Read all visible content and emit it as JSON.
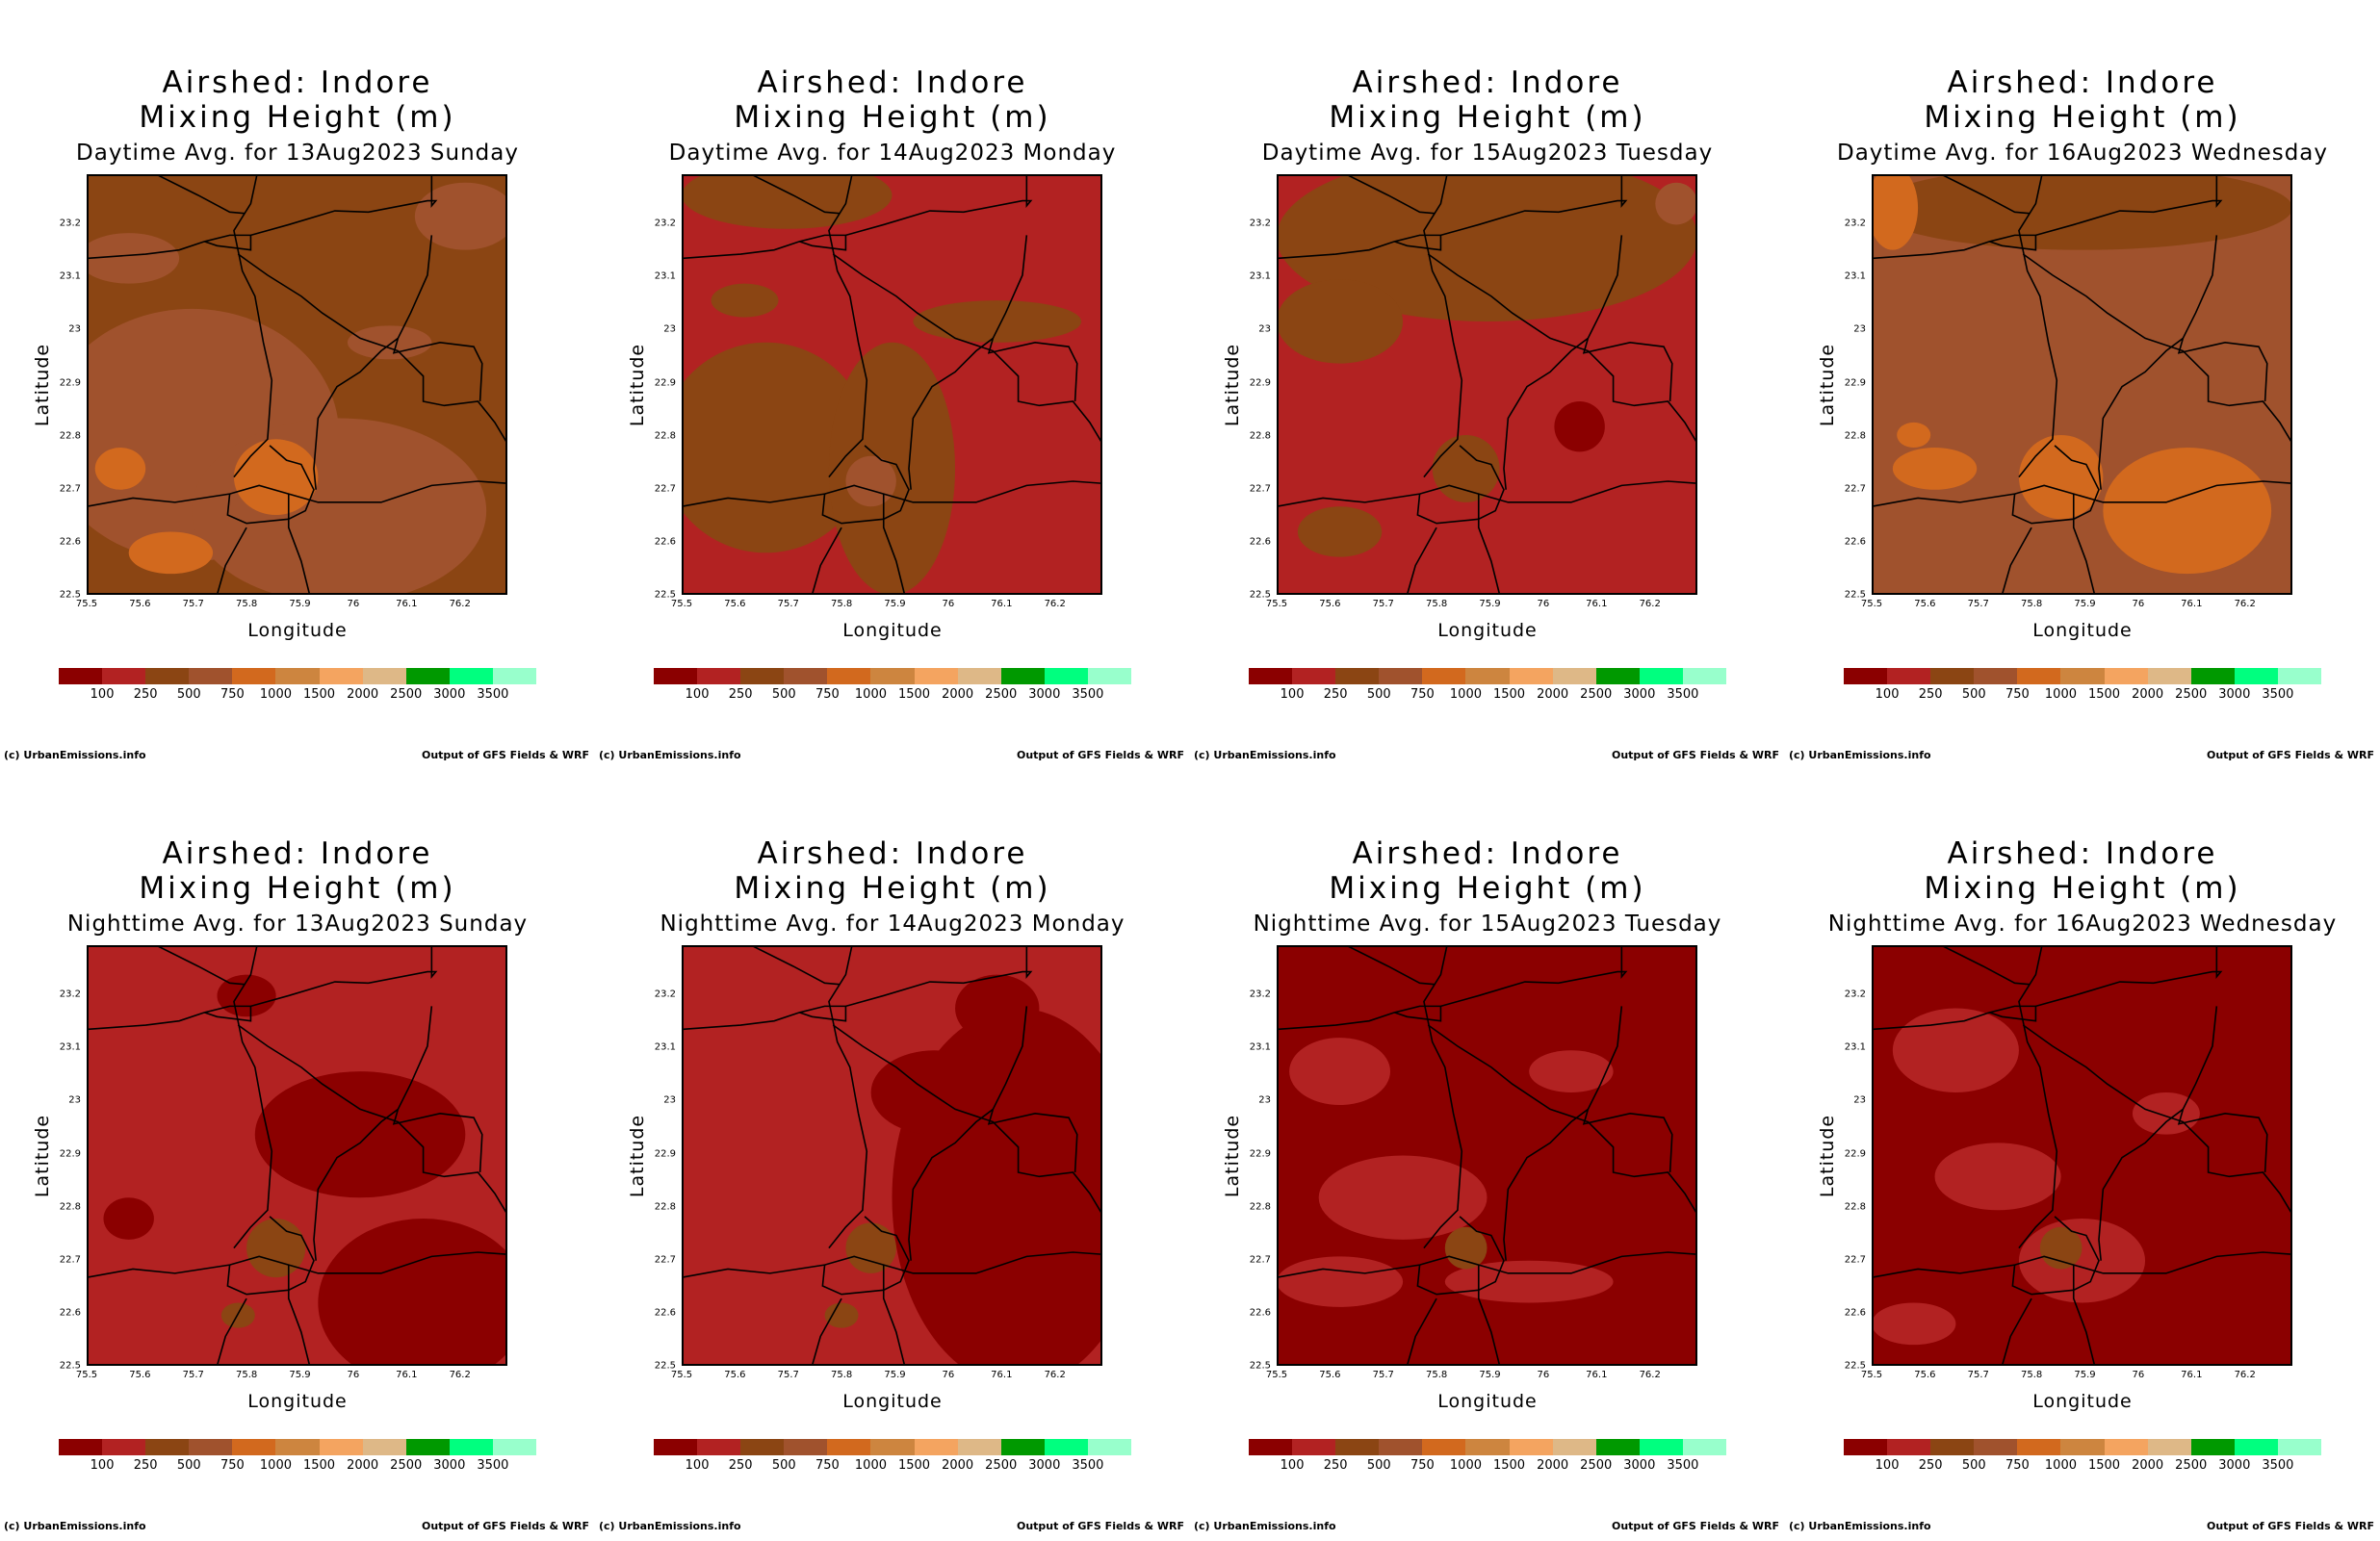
{
  "colorbar": {
    "colors": [
      "#8B0000",
      "#B22222",
      "#8B4513",
      "#A0522D",
      "#D2691E",
      "#CD853F",
      "#F4A460",
      "#DEB887",
      "#009900",
      "#00FF7F",
      "#98FFCC"
    ],
    "labels": [
      "100",
      "250",
      "500",
      "750",
      "1000",
      "1500",
      "2000",
      "2500",
      "3000",
      "3500"
    ]
  },
  "axes": {
    "xlabel": "Longitude",
    "ylabel": "Latitude",
    "xticks": [
      "75.5",
      "75.6",
      "75.7",
      "75.8",
      "75.9",
      "76",
      "76.1",
      "76.2"
    ],
    "yticks": [
      "22.5",
      "22.6",
      "22.7",
      "22.8",
      "22.9",
      "23",
      "23.1",
      "23.2"
    ]
  },
  "footer": {
    "left": "(c) UrbanEmissions.info",
    "right": "Output of GFS Fields & WRF"
  },
  "panels": [
    {
      "title": "Airshed: Indore",
      "subtitle": "Mixing Height (m)",
      "period": "Daytime Avg. for 13Aug2023 Sunday",
      "dominant_class": "250-500"
    },
    {
      "title": "Airshed: Indore",
      "subtitle": "Mixing Height (m)",
      "period": "Daytime Avg. for 14Aug2023 Monday",
      "dominant_class": "100-250"
    },
    {
      "title": "Airshed: Indore",
      "subtitle": "Mixing Height (m)",
      "period": "Daytime Avg. for 15Aug2023 Tuesday",
      "dominant_class": "100-250"
    },
    {
      "title": "Airshed: Indore",
      "subtitle": "Mixing Height (m)",
      "period": "Daytime Avg. for 16Aug2023 Wednesday",
      "dominant_class": "500-750"
    },
    {
      "title": "Airshed: Indore",
      "subtitle": "Mixing Height (m)",
      "period": "Nighttime Avg. for 13Aug2023 Sunday",
      "dominant_class": "100-250"
    },
    {
      "title": "Airshed: Indore",
      "subtitle": "Mixing Height (m)",
      "period": "Nighttime Avg. for 14Aug2023 Monday",
      "dominant_class": "100-250"
    },
    {
      "title": "Airshed: Indore",
      "subtitle": "Mixing Height (m)",
      "period": "Nighttime Avg. for 15Aug2023 Tuesday",
      "dominant_class": "<100"
    },
    {
      "title": "Airshed: Indore",
      "subtitle": "Mixing Height (m)",
      "period": "Nighttime Avg. for 16Aug2023 Wednesday",
      "dominant_class": "<100"
    }
  ]
}
